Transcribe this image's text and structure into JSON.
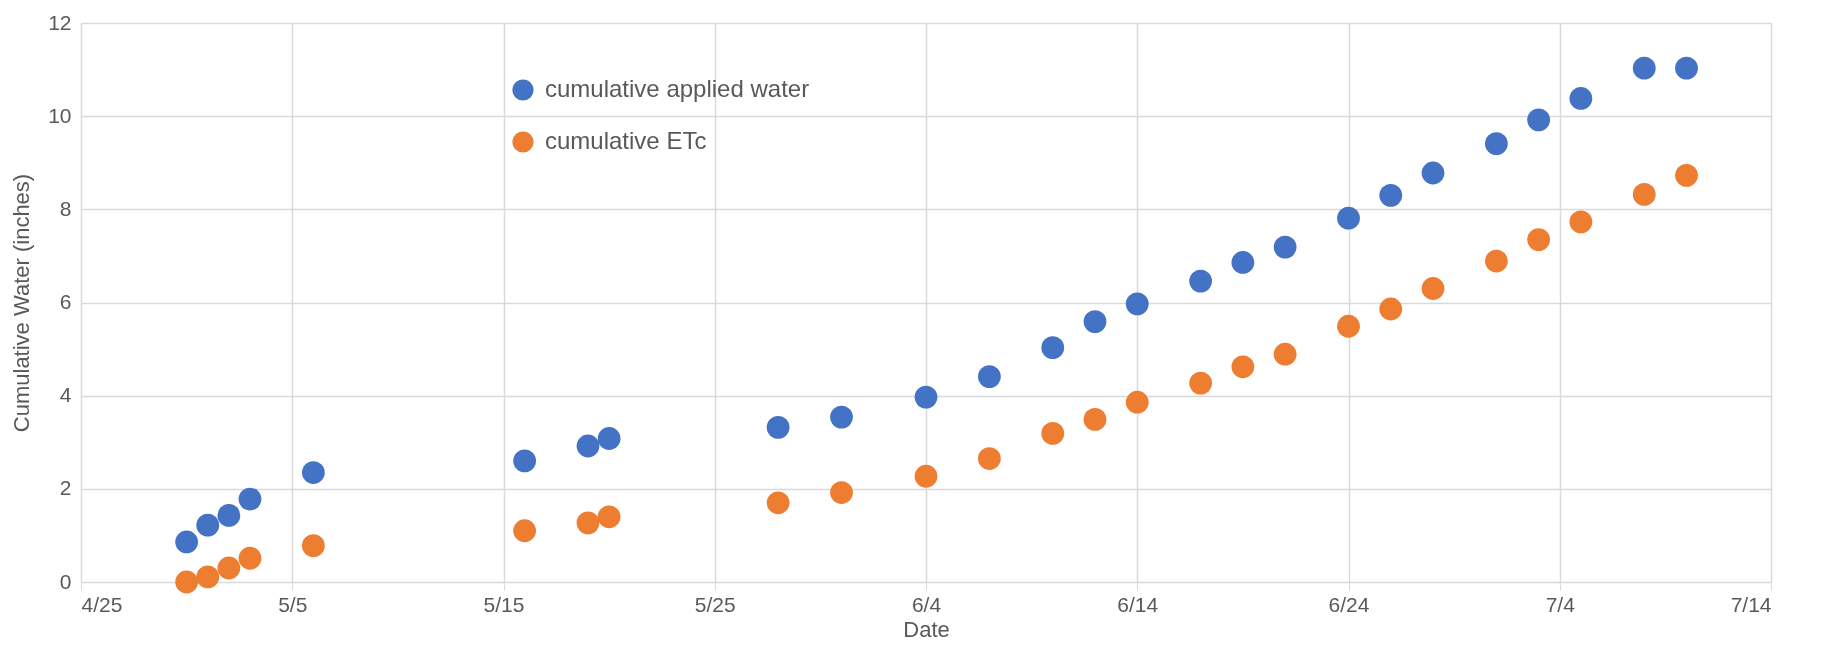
{
  "chart_data": {
    "type": "scatter",
    "xlabel": "Date",
    "ylabel": "Cumulative Water (inches)",
    "x": [
      "--04-30",
      "--05-01",
      "--05-02",
      "--05-03",
      "--05-06",
      "--05-16",
      "--05-19",
      "--05-20",
      "--05-28",
      "--05-31",
      "--06-04",
      "--06-07",
      "--06-10",
      "--06-12",
      "--06-14",
      "--06-17",
      "--06-19",
      "--06-21",
      "--06-24",
      "--06-26",
      "--06-28",
      "--07-01",
      "--07-03",
      "--07-05",
      "--07-08",
      "--07-10"
    ],
    "series": [
      {
        "name": "cumulative applied water",
        "color": "#4472c4",
        "values": [
          0.86,
          1.22,
          1.43,
          1.78,
          2.35,
          2.6,
          2.92,
          3.08,
          3.32,
          3.54,
          3.97,
          4.41,
          5.03,
          5.59,
          5.97,
          6.46,
          6.86,
          7.19,
          7.81,
          8.3,
          8.78,
          9.41,
          9.92,
          10.38,
          11.03,
          11.03
        ]
      },
      {
        "name": "cumulative ETc",
        "color": "#ed7d31",
        "values": [
          0,
          0.11,
          0.3,
          0.51,
          0.78,
          1.1,
          1.27,
          1.4,
          1.7,
          1.92,
          2.27,
          2.65,
          3.19,
          3.49,
          3.86,
          4.27,
          4.62,
          4.89,
          5.49,
          5.86,
          6.3,
          6.89,
          7.35,
          7.73,
          8.32,
          8.73
        ]
      }
    ],
    "xlim": [
      "--04-25",
      "--07-14"
    ],
    "xticks": [
      {
        "value": "--04-25",
        "label": "4/25"
      },
      {
        "value": "--05-05",
        "label": "5/5"
      },
      {
        "value": "--05-15",
        "label": "5/15"
      },
      {
        "value": "--05-25",
        "label": "5/25"
      },
      {
        "value": "--06-04",
        "label": "6/4"
      },
      {
        "value": "--06-14",
        "label": "6/14"
      },
      {
        "value": "--06-24",
        "label": "6/24"
      },
      {
        "value": "--07-04",
        "label": "7/4"
      },
      {
        "value": "--07-14",
        "label": "7/14"
      }
    ],
    "ylim": [
      0,
      12
    ],
    "yticks": [
      0,
      2,
      4,
      6,
      8,
      10,
      12
    ],
    "grid": true,
    "legend": "top",
    "marker": "circle"
  }
}
